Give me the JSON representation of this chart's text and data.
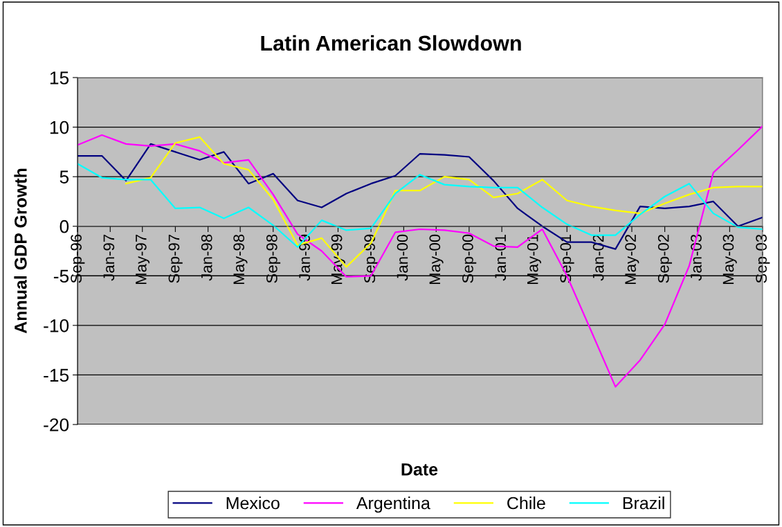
{
  "chart_data": {
    "type": "line",
    "title": "Latin American Slowdown",
    "xlabel": "Date",
    "ylabel": "Annual GDP Growth",
    "x": [
      "1996-09",
      "1996-12",
      "1997-03",
      "1997-06",
      "1997-09",
      "1997-12",
      "1998-03",
      "1998-06",
      "1998-09",
      "1998-12",
      "1999-03",
      "1999-06",
      "1999-09",
      "1999-12",
      "2000-03",
      "2000-06",
      "2000-09",
      "2000-12",
      "2001-03",
      "2001-06",
      "2001-09",
      "2001-12",
      "2002-03",
      "2002-06",
      "2002-09",
      "2002-12",
      "2003-03",
      "2003-06",
      "2003-09"
    ],
    "series": [
      {
        "name": "Mexico",
        "color": "#000080",
        "values": [
          7.1,
          7.1,
          4.6,
          8.3,
          7.5,
          6.7,
          7.5,
          4.3,
          5.3,
          2.6,
          1.9,
          3.3,
          4.3,
          5.1,
          7.3,
          7.2,
          7.0,
          4.6,
          1.8,
          0.0,
          -1.6,
          -1.6,
          -2.3,
          2.0,
          1.8,
          2.0,
          2.5,
          0.0,
          0.9
        ]
      },
      {
        "name": "Argentina",
        "color": "#ff00ff",
        "values": [
          8.2,
          9.2,
          8.3,
          8.1,
          8.3,
          7.6,
          6.4,
          6.7,
          3.2,
          -0.8,
          -2.5,
          -5.1,
          -5.0,
          -0.6,
          -0.3,
          -0.4,
          -0.7,
          -2.0,
          -2.1,
          -0.3,
          -5.0,
          -10.6,
          -16.2,
          -13.5,
          -9.9,
          -4.0,
          5.4,
          7.7,
          10.1
        ]
      },
      {
        "name": "Chile",
        "color": "#ffff00",
        "values": [
          null,
          null,
          4.3,
          4.9,
          8.4,
          9.0,
          6.3,
          5.7,
          2.7,
          -1.9,
          -1.2,
          -4.1,
          -1.7,
          3.6,
          3.6,
          5.0,
          4.7,
          2.9,
          3.3,
          4.7,
          2.6,
          2.0,
          1.6,
          1.3,
          2.3,
          3.2,
          3.9,
          4.0,
          4.0
        ]
      },
      {
        "name": "Brazil",
        "color": "#00ffff",
        "values": [
          6.3,
          4.9,
          4.7,
          4.7,
          1.8,
          1.9,
          0.8,
          1.9,
          0.1,
          -2.1,
          0.6,
          -0.4,
          -0.2,
          3.3,
          5.2,
          4.2,
          4.0,
          3.9,
          3.9,
          1.9,
          0.2,
          -0.9,
          -0.9,
          1.2,
          3.0,
          4.3,
          1.3,
          -0.1,
          -0.3
        ]
      }
    ],
    "xlim": [
      "1996-09",
      "2003-09"
    ],
    "xticks": [
      {
        "value": "1996-09",
        "label": "Sep-96"
      },
      {
        "value": "1997-01",
        "label": "Jan-97"
      },
      {
        "value": "1997-05",
        "label": "May-97"
      },
      {
        "value": "1997-09",
        "label": "Sep-97"
      },
      {
        "value": "1998-01",
        "label": "Jan-98"
      },
      {
        "value": "1998-05",
        "label": "May-98"
      },
      {
        "value": "1998-09",
        "label": "Sep-98"
      },
      {
        "value": "1999-01",
        "label": "Jan-99"
      },
      {
        "value": "1999-05",
        "label": "May-99"
      },
      {
        "value": "1999-09",
        "label": "Sep-99"
      },
      {
        "value": "2000-01",
        "label": "Jan-00"
      },
      {
        "value": "2000-05",
        "label": "May-00"
      },
      {
        "value": "2000-09",
        "label": "Sep-00"
      },
      {
        "value": "2001-01",
        "label": "Jan-01"
      },
      {
        "value": "2001-05",
        "label": "May-01"
      },
      {
        "value": "2001-09",
        "label": "Sep-01"
      },
      {
        "value": "2002-01",
        "label": "Jan-02"
      },
      {
        "value": "2002-05",
        "label": "May-02"
      },
      {
        "value": "2002-09",
        "label": "Sep-02"
      },
      {
        "value": "2003-01",
        "label": "Jan-03"
      },
      {
        "value": "2003-05",
        "label": "May-03"
      },
      {
        "value": "2003-09",
        "label": "Sep-03"
      }
    ],
    "ylim": [
      -20,
      15
    ],
    "yticks": [
      -20,
      -15,
      -10,
      -5,
      0,
      5,
      10,
      15
    ],
    "grid": "y",
    "legend": "bottom",
    "marker": "none",
    "line_style": "solid"
  }
}
